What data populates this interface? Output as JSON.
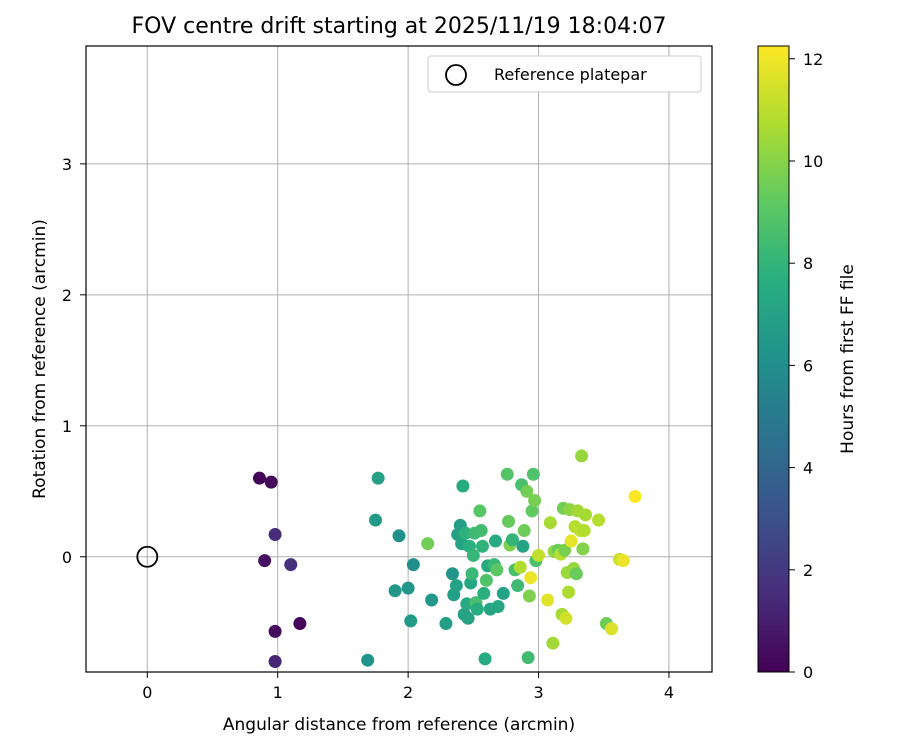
{
  "chart_data": {
    "type": "scatter",
    "title": "FOV centre drift starting at 2025/11/19 18:04:07",
    "xlabel": "Angular distance from reference (arcmin)",
    "ylabel": "Rotation from reference (arcmin)",
    "xlim": [
      -0.47,
      4.33
    ],
    "ylim": [
      -0.88,
      3.9
    ],
    "xticks": [
      0,
      1,
      2,
      3,
      4
    ],
    "yticks": [
      0,
      1,
      2,
      3
    ],
    "grid": true,
    "legend": {
      "placement": "top-right",
      "entries": [
        {
          "label": "Reference platepar",
          "marker": "open-circle"
        }
      ]
    },
    "reference_point": {
      "x": 0,
      "y": 0
    },
    "colorbar": {
      "label": "Hours from first FF file",
      "colormap": "viridis",
      "range": [
        0,
        12.25
      ],
      "ticks": [
        0,
        2,
        4,
        6,
        8,
        10,
        12
      ]
    },
    "points": [
      {
        "x": 0.86,
        "y": 0.6,
        "c": 0.1
      },
      {
        "x": 0.95,
        "y": 0.57,
        "c": 0.3
      },
      {
        "x": 0.9,
        "y": -0.03,
        "c": 0.6
      },
      {
        "x": 0.98,
        "y": -0.57,
        "c": 0.4
      },
      {
        "x": 1.17,
        "y": -0.51,
        "c": 0.2
      },
      {
        "x": 0.98,
        "y": 0.17,
        "c": 1.5
      },
      {
        "x": 1.1,
        "y": -0.06,
        "c": 1.7
      },
      {
        "x": 0.98,
        "y": -0.8,
        "c": 1.3
      },
      {
        "x": 1.69,
        "y": -0.79,
        "c": 6.3
      },
      {
        "x": 1.75,
        "y": 0.28,
        "c": 6.6
      },
      {
        "x": 1.77,
        "y": 0.6,
        "c": 6.9
      },
      {
        "x": 1.9,
        "y": -0.26,
        "c": 6.5
      },
      {
        "x": 1.93,
        "y": 0.16,
        "c": 6.2
      },
      {
        "x": 2.0,
        "y": -0.24,
        "c": 6.4
      },
      {
        "x": 2.02,
        "y": -0.49,
        "c": 6.6
      },
      {
        "x": 2.04,
        "y": -0.06,
        "c": 6.1
      },
      {
        "x": 2.15,
        "y": 0.1,
        "c": 9.6
      },
      {
        "x": 2.18,
        "y": -0.33,
        "c": 6.5
      },
      {
        "x": 2.29,
        "y": -0.51,
        "c": 6.8
      },
      {
        "x": 2.34,
        "y": -0.13,
        "c": 6.4
      },
      {
        "x": 2.35,
        "y": -0.29,
        "c": 6.8
      },
      {
        "x": 2.37,
        "y": -0.22,
        "c": 7.0
      },
      {
        "x": 2.38,
        "y": 0.17,
        "c": 6.9
      },
      {
        "x": 2.4,
        "y": 0.24,
        "c": 6.8
      },
      {
        "x": 2.41,
        "y": 0.1,
        "c": 7.2
      },
      {
        "x": 2.42,
        "y": 0.54,
        "c": 7.5
      },
      {
        "x": 2.43,
        "y": -0.44,
        "c": 7.0
      },
      {
        "x": 2.44,
        "y": 0.18,
        "c": 7.8
      },
      {
        "x": 2.45,
        "y": -0.36,
        "c": 7.4
      },
      {
        "x": 2.46,
        "y": -0.47,
        "c": 7.1
      },
      {
        "x": 2.47,
        "y": 0.08,
        "c": 7.7
      },
      {
        "x": 2.48,
        "y": -0.2,
        "c": 7.3
      },
      {
        "x": 2.49,
        "y": -0.13,
        "c": 8.2
      },
      {
        "x": 2.5,
        "y": 0.01,
        "c": 8.1
      },
      {
        "x": 2.51,
        "y": 0.18,
        "c": 8.3
      },
      {
        "x": 2.52,
        "y": -0.35,
        "c": 8.6
      },
      {
        "x": 2.53,
        "y": -0.4,
        "c": 7.6
      },
      {
        "x": 2.55,
        "y": 0.35,
        "c": 9.0
      },
      {
        "x": 2.56,
        "y": 0.2,
        "c": 8.4
      },
      {
        "x": 2.57,
        "y": 0.08,
        "c": 7.9
      },
      {
        "x": 2.58,
        "y": -0.28,
        "c": 7.7
      },
      {
        "x": 2.59,
        "y": -0.78,
        "c": 7.5
      },
      {
        "x": 2.6,
        "y": -0.18,
        "c": 8.8
      },
      {
        "x": 2.61,
        "y": -0.07,
        "c": 7.4
      },
      {
        "x": 2.63,
        "y": -0.4,
        "c": 7.2
      },
      {
        "x": 2.66,
        "y": -0.06,
        "c": 8.2
      },
      {
        "x": 2.67,
        "y": 0.12,
        "c": 7.4
      },
      {
        "x": 2.68,
        "y": -0.1,
        "c": 9.1
      },
      {
        "x": 2.69,
        "y": -0.38,
        "c": 7.3
      },
      {
        "x": 2.73,
        "y": -0.28,
        "c": 7.0
      },
      {
        "x": 2.76,
        "y": 0.63,
        "c": 8.9
      },
      {
        "x": 2.77,
        "y": 0.27,
        "c": 9.3
      },
      {
        "x": 2.78,
        "y": 0.09,
        "c": 9.8
      },
      {
        "x": 2.8,
        "y": 0.13,
        "c": 8.0
      },
      {
        "x": 2.82,
        "y": -0.1,
        "c": 8.6
      },
      {
        "x": 2.84,
        "y": -0.22,
        "c": 8.3
      },
      {
        "x": 2.86,
        "y": -0.08,
        "c": 10.8
      },
      {
        "x": 2.87,
        "y": 0.55,
        "c": 8.6
      },
      {
        "x": 2.88,
        "y": 0.08,
        "c": 7.1
      },
      {
        "x": 2.89,
        "y": 0.2,
        "c": 9.5
      },
      {
        "x": 2.91,
        "y": 0.5,
        "c": 9.6
      },
      {
        "x": 2.92,
        "y": -0.77,
        "c": 8.4
      },
      {
        "x": 2.93,
        "y": -0.3,
        "c": 9.8
      },
      {
        "x": 2.94,
        "y": -0.16,
        "c": 11.9
      },
      {
        "x": 2.95,
        "y": 0.35,
        "c": 9.2
      },
      {
        "x": 2.96,
        "y": 0.63,
        "c": 8.8
      },
      {
        "x": 2.97,
        "y": 0.43,
        "c": 9.7
      },
      {
        "x": 2.98,
        "y": -0.03,
        "c": 8.7
      },
      {
        "x": 3.0,
        "y": 0.01,
        "c": 11.1
      },
      {
        "x": 3.07,
        "y": -0.33,
        "c": 11.7
      },
      {
        "x": 3.09,
        "y": 0.26,
        "c": 10.6
      },
      {
        "x": 3.11,
        "y": -0.66,
        "c": 10.5
      },
      {
        "x": 3.12,
        "y": 0.04,
        "c": 10.2
      },
      {
        "x": 3.15,
        "y": 0.05,
        "c": 9.4
      },
      {
        "x": 3.17,
        "y": 0.02,
        "c": 10.9
      },
      {
        "x": 3.18,
        "y": -0.44,
        "c": 10.6
      },
      {
        "x": 3.19,
        "y": 0.37,
        "c": 9.6
      },
      {
        "x": 3.2,
        "y": 0.05,
        "c": 9.7
      },
      {
        "x": 3.21,
        "y": -0.47,
        "c": 11.4
      },
      {
        "x": 3.22,
        "y": -0.12,
        "c": 10.4
      },
      {
        "x": 3.23,
        "y": -0.27,
        "c": 10.7
      },
      {
        "x": 3.24,
        "y": 0.36,
        "c": 10.1
      },
      {
        "x": 3.25,
        "y": 0.12,
        "c": 11.8
      },
      {
        "x": 3.27,
        "y": -0.09,
        "c": 10.3
      },
      {
        "x": 3.28,
        "y": 0.23,
        "c": 10.9
      },
      {
        "x": 3.29,
        "y": -0.13,
        "c": 9.4
      },
      {
        "x": 3.3,
        "y": 0.35,
        "c": 10.5
      },
      {
        "x": 3.32,
        "y": 0.2,
        "c": 11.0
      },
      {
        "x": 3.33,
        "y": 0.77,
        "c": 10.3
      },
      {
        "x": 3.34,
        "y": 0.06,
        "c": 9.9
      },
      {
        "x": 3.35,
        "y": 0.2,
        "c": 10.8
      },
      {
        "x": 3.36,
        "y": 0.32,
        "c": 10.6
      },
      {
        "x": 3.46,
        "y": 0.28,
        "c": 10.9
      },
      {
        "x": 3.52,
        "y": -0.51,
        "c": 9.5
      },
      {
        "x": 3.56,
        "y": -0.55,
        "c": 11.6
      },
      {
        "x": 3.62,
        "y": -0.02,
        "c": 11.3
      },
      {
        "x": 3.65,
        "y": -0.03,
        "c": 11.9
      },
      {
        "x": 3.74,
        "y": 0.46,
        "c": 12.2
      }
    ]
  }
}
